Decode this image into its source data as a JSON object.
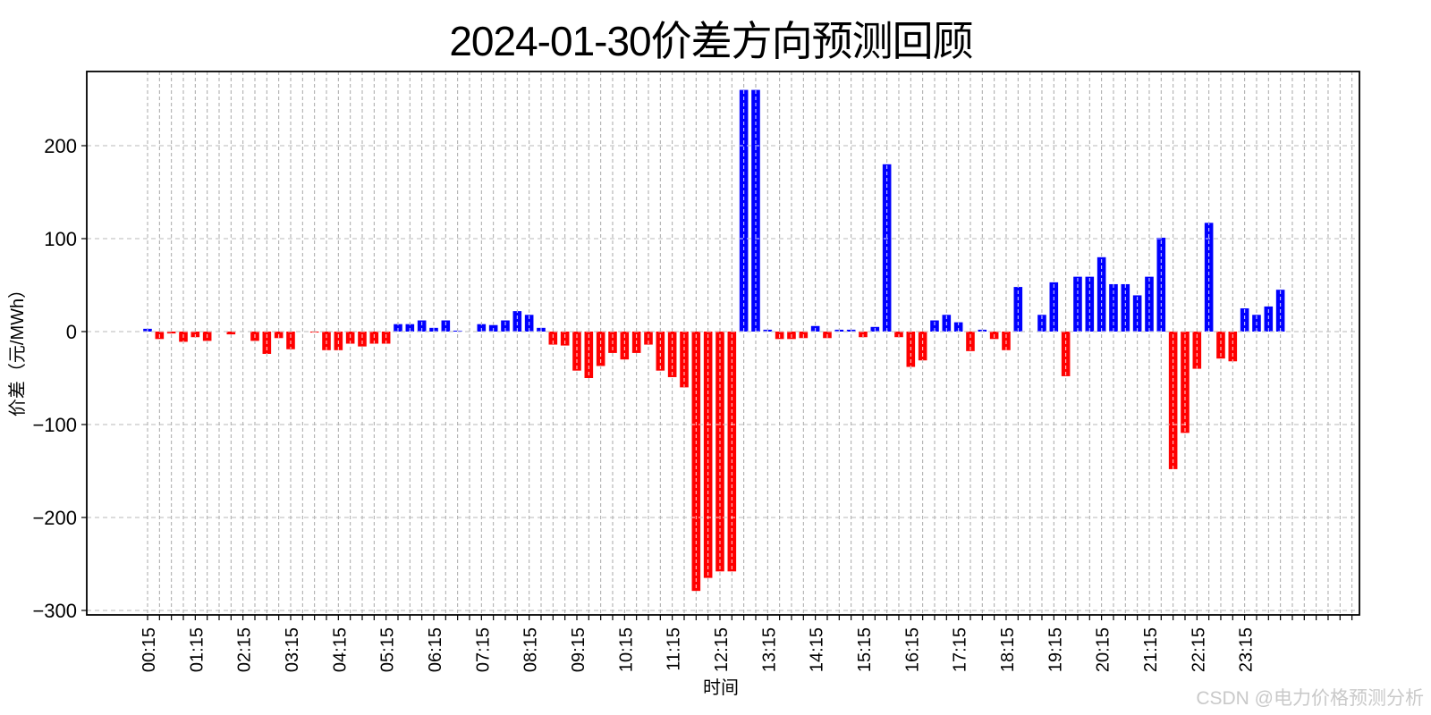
{
  "title": "2024-01-30价差方向预测回顾",
  "watermark": "CSDN @电力价格预测分析",
  "chart_data": {
    "type": "bar",
    "title": "2024-01-30价差方向预测回顾",
    "xlabel": "时间",
    "ylabel": "价差（元/MWh）",
    "grid": true,
    "legend": "none",
    "ylim": [
      -304.8,
      280
    ],
    "y_tick_values": [
      200,
      100,
      0,
      -100,
      -200,
      -300
    ],
    "y_tick_labels": [
      "200",
      "100",
      "0",
      "−100",
      "−200",
      "−300"
    ],
    "x_tick_every": 4,
    "positive_color": "#0000ff",
    "negative_color": "#ff0000",
    "x": [
      "00:15",
      "00:30",
      "00:45",
      "01:00",
      "01:15",
      "01:30",
      "01:45",
      "02:00",
      "02:15",
      "02:30",
      "02:45",
      "03:00",
      "03:15",
      "03:30",
      "03:45",
      "04:00",
      "04:15",
      "04:30",
      "04:45",
      "05:00",
      "05:15",
      "05:30",
      "05:45",
      "06:00",
      "06:15",
      "06:30",
      "06:45",
      "07:00",
      "07:15",
      "07:30",
      "07:45",
      "08:00",
      "08:15",
      "08:30",
      "08:45",
      "09:00",
      "09:15",
      "09:30",
      "09:45",
      "10:00",
      "10:15",
      "10:30",
      "10:45",
      "11:00",
      "11:15",
      "11:30",
      "11:45",
      "12:00",
      "12:15",
      "12:30",
      "12:45",
      "13:00",
      "13:15",
      "13:30",
      "13:45",
      "14:00",
      "14:15",
      "14:30",
      "14:45",
      "15:00",
      "15:15",
      "15:30",
      "15:45",
      "16:00",
      "16:15",
      "16:30",
      "16:45",
      "17:00",
      "17:15",
      "17:30",
      "17:45",
      "18:00",
      "18:15",
      "18:30",
      "18:45",
      "19:00",
      "19:15",
      "19:30",
      "19:45",
      "20:00",
      "20:15",
      "20:30",
      "20:45",
      "21:00",
      "21:15",
      "21:30",
      "21:45",
      "22:00",
      "22:15",
      "22:30",
      "22:45",
      "23:00",
      "23:15",
      "23:30",
      "23:45",
      "24:00"
    ],
    "values": [
      3,
      -8,
      -2,
      -11,
      -6,
      -10,
      0,
      -3,
      0,
      -10,
      -24,
      -7,
      -19,
      0,
      -1,
      -20,
      -20,
      -13,
      -16,
      -13,
      -13,
      8,
      8,
      12,
      4,
      12,
      1,
      0,
      8,
      7,
      12,
      22,
      18,
      4,
      -14,
      -15,
      -42,
      -50,
      -37,
      -23,
      -30,
      -23,
      -14,
      -42,
      -49,
      -60,
      -279,
      -265,
      -258,
      -258,
      260,
      260,
      2,
      -8,
      -8,
      -7,
      6,
      -7,
      2,
      2,
      -6,
      5,
      180,
      -6,
      -38,
      -31,
      12,
      18,
      10,
      -21,
      2,
      -8,
      -20,
      48,
      0,
      18,
      53,
      -48,
      59,
      59,
      80,
      51,
      51,
      39,
      59,
      101,
      -148,
      -109,
      -40,
      117,
      -29,
      -32,
      25,
      18,
      27,
      45
    ]
  }
}
